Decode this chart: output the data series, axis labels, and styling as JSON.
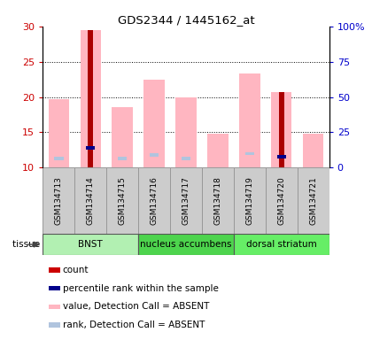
{
  "title": "GDS2344 / 1445162_at",
  "samples": [
    "GSM134713",
    "GSM134714",
    "GSM134715",
    "GSM134716",
    "GSM134717",
    "GSM134718",
    "GSM134719",
    "GSM134720",
    "GSM134721"
  ],
  "pink_bar_tops": [
    19.7,
    29.5,
    18.6,
    22.5,
    20.0,
    14.8,
    23.4,
    20.7,
    14.8
  ],
  "pink_bar_bottoms": [
    10.0,
    10.0,
    10.0,
    10.0,
    10.0,
    10.0,
    10.0,
    10.0,
    10.0
  ],
  "red_bar_tops": [
    10.0,
    29.5,
    10.0,
    10.0,
    10.0,
    10.0,
    10.0,
    20.7,
    10.0
  ],
  "red_bar_bottoms": [
    10.0,
    10.0,
    10.0,
    10.0,
    10.0,
    10.0,
    10.0,
    10.0,
    10.0
  ],
  "blue_markers": [
    null,
    12.8,
    null,
    null,
    null,
    null,
    null,
    11.5,
    null
  ],
  "lightblue_markers": [
    11.3,
    null,
    11.3,
    11.8,
    11.3,
    null,
    12.0,
    null,
    null
  ],
  "ylim_left": [
    10,
    30
  ],
  "ylim_right": [
    0,
    100
  ],
  "yticks_left": [
    10,
    15,
    20,
    25,
    30
  ],
  "ytick_labels_left": [
    "10",
    "15",
    "20",
    "25",
    "30"
  ],
  "yticks_right_vals": [
    0,
    25,
    50,
    75,
    100
  ],
  "ytick_labels_right": [
    "0",
    "25",
    "50",
    "75",
    "100%"
  ],
  "tissue_groups": [
    {
      "label": "BNST",
      "start": 0,
      "end": 3,
      "color": "#b2f0b2"
    },
    {
      "label": "nucleus accumbens",
      "start": 3,
      "end": 6,
      "color": "#4dd44d"
    },
    {
      "label": "dorsal striatum",
      "start": 6,
      "end": 9,
      "color": "#66ee66"
    }
  ],
  "tissue_label": "tissue",
  "legend": [
    {
      "color": "#cc0000",
      "label": "count"
    },
    {
      "color": "#00008b",
      "label": "percentile rank within the sample"
    },
    {
      "color": "#ffb6c1",
      "label": "value, Detection Call = ABSENT"
    },
    {
      "color": "#b0c4de",
      "label": "rank, Detection Call = ABSENT"
    }
  ],
  "bar_width": 0.65,
  "left_axis_color": "#cc0000",
  "right_axis_color": "#0000cc",
  "bg_color": "#ffffff",
  "sample_box_color": "#cccccc",
  "sample_box_edge": "#999999"
}
